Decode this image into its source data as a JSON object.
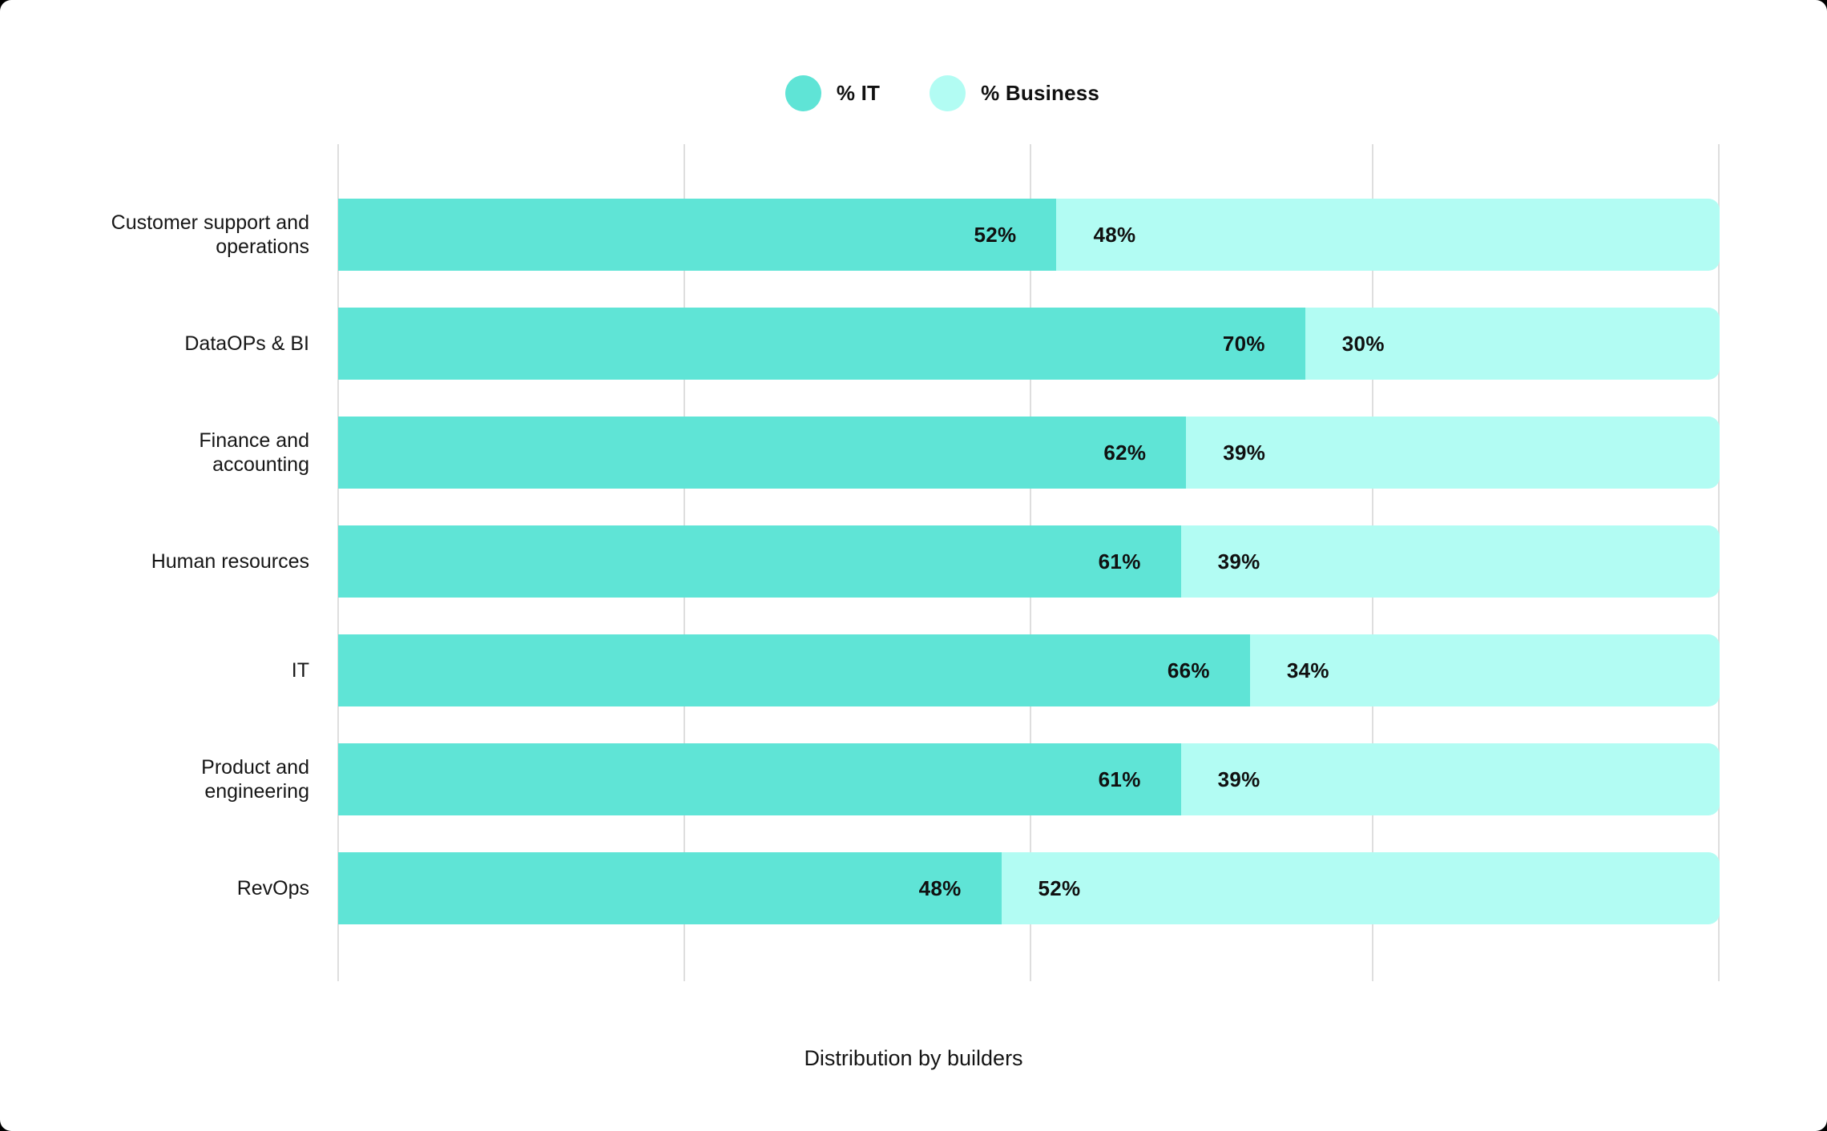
{
  "caption": "Distribution by builders",
  "legend": {
    "items": [
      {
        "label": "% IT",
        "color": "#5FE4D6"
      },
      {
        "label": "% Business",
        "color": "#B2FCF3"
      }
    ]
  },
  "chart_data": {
    "type": "bar",
    "orientation": "horizontal",
    "stacked": true,
    "title": "",
    "caption": "Distribution by builders",
    "categories": [
      "Customer support and\noperations",
      "DataOPs & BI",
      "Finance and\naccounting",
      "Human resources",
      "IT",
      "Product and\nengineering",
      "RevOps"
    ],
    "series": [
      {
        "name": "% IT",
        "color": "#5FE4D6",
        "values": [
          52,
          70,
          62,
          61,
          66,
          61,
          48
        ]
      },
      {
        "name": "% Business",
        "color": "#B2FCF3",
        "values": [
          48,
          30,
          39,
          39,
          34,
          39,
          52
        ]
      }
    ],
    "value_suffix": "%",
    "xlim": [
      0,
      100
    ],
    "gridline_positions_pct": [
      0,
      25,
      50,
      75,
      100
    ],
    "grid": true,
    "legend_position": "top-center",
    "grid_color": "#dedede",
    "text_color": "#101010"
  }
}
